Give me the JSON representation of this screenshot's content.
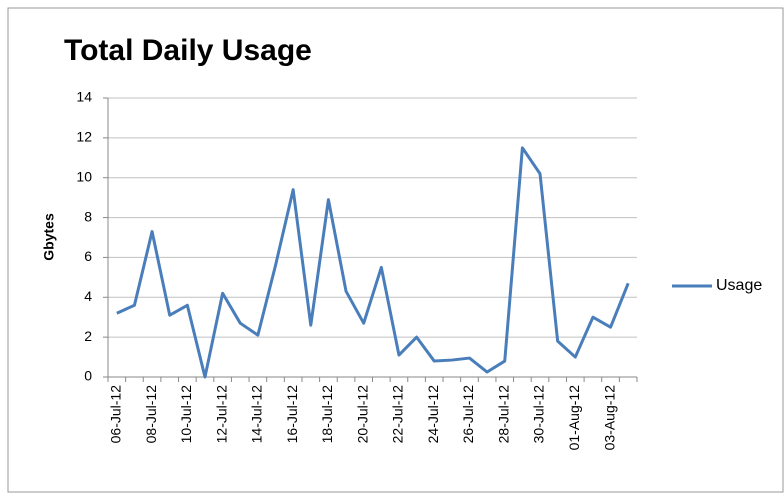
{
  "chart_data": {
    "type": "line",
    "title": "Total Daily Usage",
    "y_label": "Gbytes",
    "categories": [
      "06-Jul-12",
      null,
      "08-Jul-12",
      null,
      "10-Jul-12",
      null,
      "12-Jul-12",
      null,
      "14-Jul-12",
      null,
      "16-Jul-12",
      null,
      "18-Jul-12",
      null,
      "20-Jul-12",
      null,
      "22-Jul-12",
      null,
      "24-Jul-12",
      null,
      "26-Jul-12",
      null,
      "28-Jul-12",
      null,
      "30-Jul-12",
      null,
      "01-Aug-12",
      null,
      "03-Aug-12",
      null
    ],
    "series": [
      {
        "name": "Usage",
        "color": "#4a7ebb",
        "values": [
          3.2,
          3.6,
          7.3,
          3.1,
          3.6,
          0.0,
          4.2,
          2.7,
          2.1,
          5.6,
          9.4,
          2.6,
          8.9,
          4.3,
          2.7,
          5.5,
          1.1,
          2.0,
          0.8,
          0.85,
          0.95,
          0.25,
          0.8,
          11.5,
          10.2,
          1.8,
          1.0,
          3.0,
          2.5,
          4.7
        ]
      }
    ],
    "ylim": [
      0,
      14
    ],
    "yticks": [
      0,
      2,
      4,
      6,
      8,
      10,
      12,
      14
    ],
    "grid": true,
    "legend": "right"
  }
}
